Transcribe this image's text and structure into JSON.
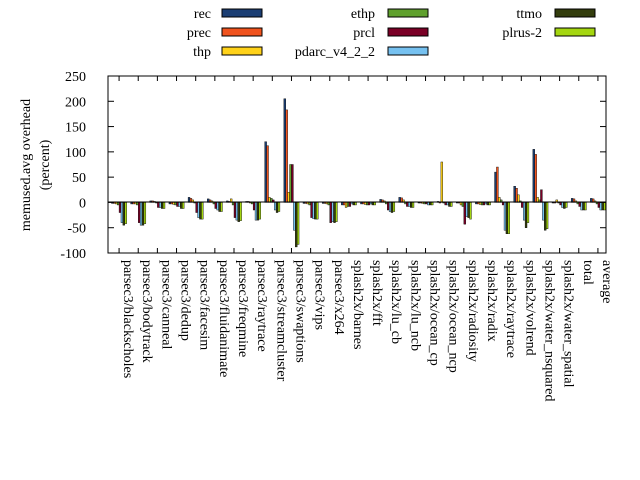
{
  "chart_data": {
    "type": "bar",
    "title": "",
    "xlabel": "",
    "ylabel": "memused.avg overhead",
    "ylabel_unit": "(percent)",
    "ylim": [
      -100,
      250
    ],
    "yticks": [
      -100,
      -50,
      0,
      50,
      100,
      150,
      200,
      250
    ],
    "grid": false,
    "legend_position": "top",
    "categories": [
      "parsec3/blackscholes",
      "parsec3/bodytrack",
      "parsec3/canneal",
      "parsec3/dedup",
      "parsec3/facesim",
      "parsec3/fluidanimate",
      "parsec3/freqmine",
      "parsec3/raytrace",
      "parsec3/streamcluster",
      "parsec3/swaptions",
      "parsec3/vips",
      "parsec3/x264",
      "splash2x/barnes",
      "splash2x/fft",
      "splash2x/lu_cb",
      "splash2x/lu_ncb",
      "splash2x/ocean_cp",
      "splash2x/ocean_ncp",
      "splash2x/radiosity",
      "splash2x/radix",
      "splash2x/raytrace",
      "splash2x/volrend",
      "splash2x/water_nsquared",
      "splash2x/water_spatial",
      "total",
      "average"
    ],
    "series": [
      {
        "name": "rec",
        "color": "#1b3e73",
        "values": [
          -2,
          -3,
          3,
          -3,
          10,
          7,
          3,
          2,
          120,
          205,
          -2,
          -2,
          -5,
          -3,
          6,
          10,
          0,
          2,
          0,
          -3,
          60,
          32,
          105,
          0,
          8,
          8
        ]
      },
      {
        "name": "prec",
        "color": "#f0531e",
        "values": [
          -2,
          -3,
          3,
          -3,
          8,
          5,
          2,
          2,
          112,
          183,
          -2,
          -2,
          -5,
          -3,
          5,
          9,
          0,
          0,
          0,
          -3,
          70,
          28,
          95,
          0,
          7,
          7
        ]
      },
      {
        "name": "thp",
        "color": "#ffd21a",
        "values": [
          -3,
          -3,
          2,
          -4,
          5,
          3,
          7,
          0,
          10,
          20,
          -3,
          -3,
          -10,
          -4,
          3,
          5,
          -2,
          80,
          -5,
          -4,
          10,
          15,
          10,
          5,
          3,
          3
        ]
      },
      {
        "name": "ethp",
        "color": "#5fa02d",
        "values": [
          -5,
          -5,
          0,
          -5,
          0,
          -3,
          -5,
          -3,
          8,
          75,
          -5,
          -5,
          -8,
          -5,
          -3,
          -3,
          -3,
          0,
          -8,
          -5,
          5,
          3,
          5,
          0,
          -3,
          -3
        ]
      },
      {
        "name": "prcl",
        "color": "#7a0026",
        "values": [
          -20,
          -40,
          -10,
          -8,
          -20,
          -12,
          -30,
          -15,
          5,
          75,
          -30,
          -40,
          -8,
          -5,
          -15,
          -8,
          -3,
          -5,
          -43,
          -5,
          -5,
          -10,
          25,
          -5,
          -8,
          -10
        ]
      },
      {
        "name": "pdarc_v4_2_2",
        "color": "#76c1f0",
        "values": [
          -40,
          -45,
          -10,
          -8,
          -30,
          -15,
          -35,
          -35,
          -15,
          -55,
          -32,
          -38,
          -3,
          -3,
          -18,
          -8,
          -5,
          -5,
          -28,
          -3,
          -55,
          -35,
          -35,
          -10,
          -15,
          -15
        ]
      },
      {
        "name": "ttmo",
        "color": "#333d0d",
        "values": [
          -45,
          -45,
          -12,
          -12,
          -33,
          -18,
          -38,
          -35,
          -20,
          -88,
          -33,
          -40,
          -5,
          -5,
          -20,
          -10,
          -5,
          -8,
          -30,
          -5,
          -62,
          -50,
          -55,
          -12,
          -15,
          -15
        ]
      },
      {
        "name": "plrus-2",
        "color": "#a4d610",
        "values": [
          -42,
          -42,
          -12,
          -12,
          -33,
          -18,
          -36,
          -33,
          -18,
          -83,
          -33,
          -38,
          -5,
          -5,
          -18,
          -10,
          -5,
          -8,
          -33,
          -5,
          -62,
          -40,
          -52,
          -10,
          -15,
          -15
        ]
      }
    ]
  }
}
